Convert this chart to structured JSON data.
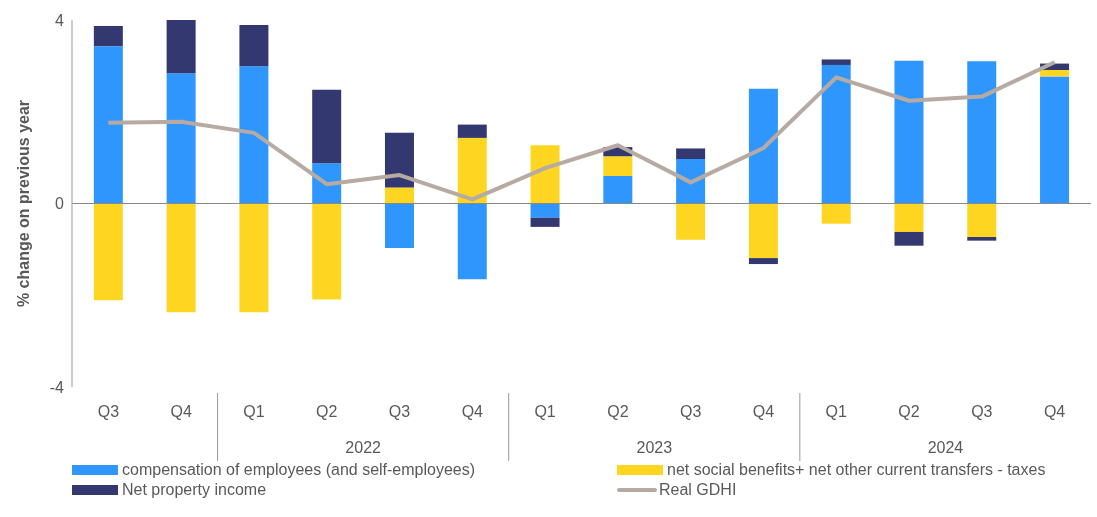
{
  "chart_data": {
    "type": "bar",
    "stacked": true,
    "ylabel": "% change on previous year",
    "categories": [
      "Q3",
      "Q4",
      "Q1",
      "Q2",
      "Q3",
      "Q4",
      "Q1",
      "Q2",
      "Q3",
      "Q4",
      "Q1",
      "Q2",
      "Q3",
      "Q4"
    ],
    "annotations": [
      "2022",
      "2023",
      "2024"
    ],
    "series": [
      {
        "name": "compensation of employees (and self-employees)",
        "color": "#2e96fd",
        "values": [
          3.43,
          2.84,
          2.99,
          0.88,
          -0.97,
          -1.65,
          -0.31,
          0.6,
          0.97,
          2.5,
          3.02,
          3.11,
          3.1,
          2.77
        ]
      },
      {
        "name": "net social benefits+ net other current transfers - taxes",
        "color": "#fed621",
        "values": [
          -2.11,
          -2.37,
          -2.37,
          -2.09,
          0.35,
          1.43,
          1.27,
          0.43,
          -0.79,
          -1.19,
          -0.44,
          -0.62,
          -0.73,
          0.14
        ]
      },
      {
        "name": "Net property income",
        "color": "#343870",
        "values": [
          0.44,
          1.16,
          0.9,
          1.6,
          1.19,
          0.29,
          -0.2,
          0.2,
          0.23,
          -0.13,
          0.12,
          -0.3,
          -0.08,
          0.14
        ]
      },
      {
        "name": "Real GDHI",
        "type": "line",
        "color": "#b7aaa2",
        "values": [
          1.76,
          1.78,
          1.54,
          0.42,
          0.62,
          0.09,
          0.77,
          1.27,
          0.46,
          1.21,
          2.75,
          2.24,
          2.33,
          3.08
        ]
      }
    ],
    "ylim": [
      -4,
      4
    ],
    "yticks": [
      -4,
      0,
      4
    ],
    "grid": false,
    "legend": "bottom",
    "marker": "none",
    "ref_lines": [
      {
        "axis": "y",
        "value": 0,
        "color": "#888888"
      }
    ]
  }
}
